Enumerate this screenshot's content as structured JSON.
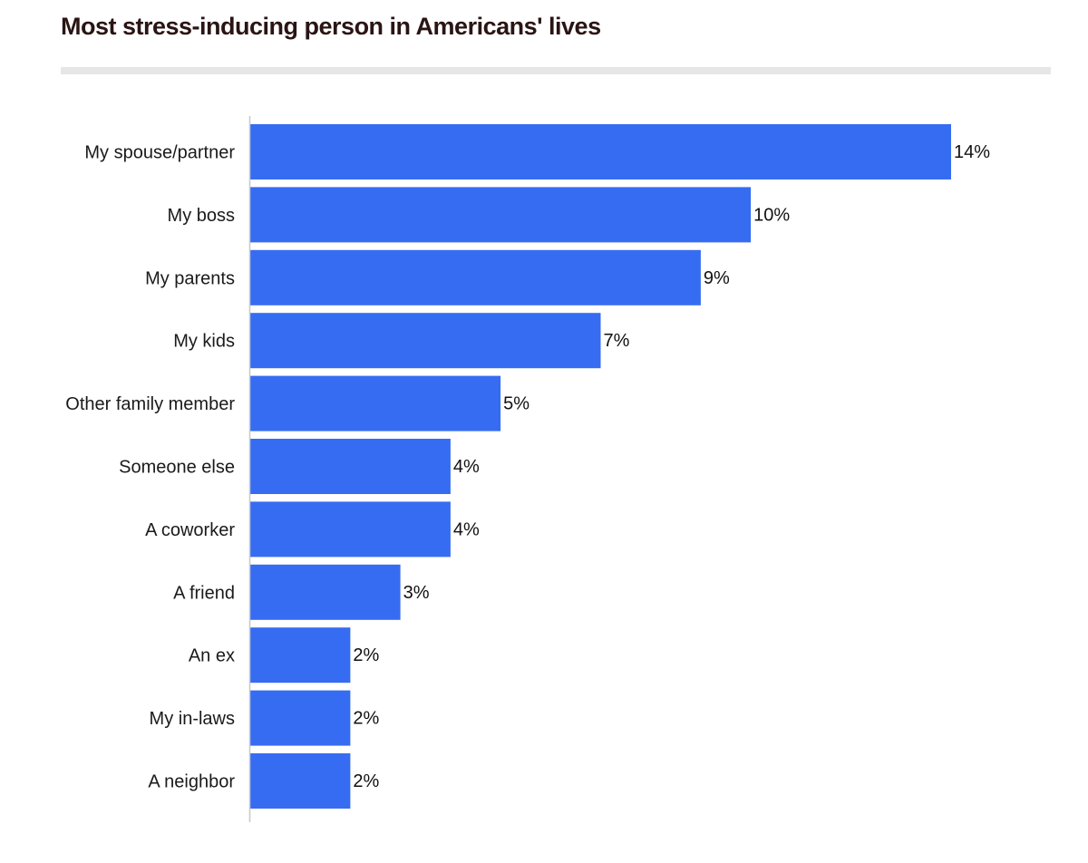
{
  "chart_data": {
    "type": "bar",
    "orientation": "horizontal",
    "title": "Most stress-inducing person in Americans' lives",
    "categories": [
      "My spouse/partner",
      "My boss",
      "My parents",
      "My kids",
      "Other family member",
      "Someone else",
      "A coworker",
      "A friend",
      "An ex",
      "My in-laws",
      "A neighbor"
    ],
    "values": [
      14,
      10,
      9,
      7,
      5,
      4,
      4,
      3,
      2,
      2,
      2
    ],
    "value_labels": [
      "14%",
      "10%",
      "9%",
      "7%",
      "5%",
      "4%",
      "4%",
      "3%",
      "2%",
      "2%",
      "2%"
    ],
    "unit": "%",
    "xlim": [
      0,
      14
    ],
    "bar_color": "#366cf2",
    "grid": false,
    "legend": "none"
  }
}
